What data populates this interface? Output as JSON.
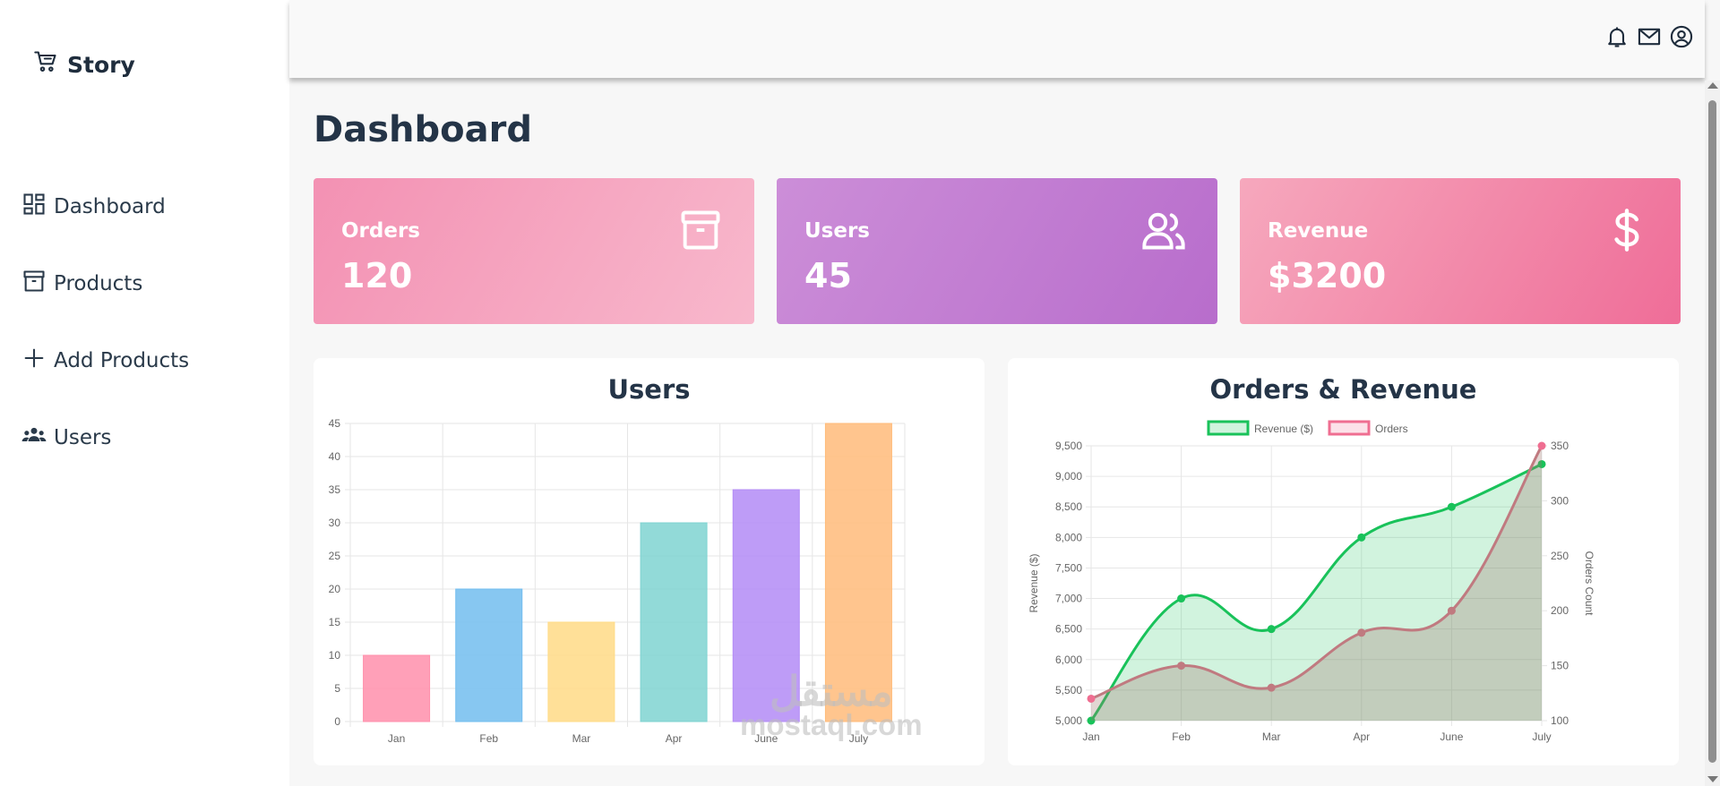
{
  "app": {
    "brand": "Story"
  },
  "sidebar": {
    "items": [
      {
        "label": "Dashboard",
        "icon": "dashboard-icon"
      },
      {
        "label": "Products",
        "icon": "archive-icon"
      },
      {
        "label": "Add Products",
        "icon": "plus-icon"
      },
      {
        "label": "Users",
        "icon": "group-icon"
      }
    ]
  },
  "header": {
    "icons": [
      "bell-icon",
      "mail-icon",
      "user-circle-icon"
    ]
  },
  "page": {
    "title": "Dashboard"
  },
  "cards": [
    {
      "label": "Orders",
      "value": "120",
      "icon": "archive-icon"
    },
    {
      "label": "Users",
      "value": "45",
      "icon": "users-icon"
    },
    {
      "label": "Revenue",
      "value": "$3200",
      "icon": "dollar-icon"
    }
  ],
  "watermark": {
    "arabic": "مستقل",
    "latin": "mostaql.com"
  },
  "colors": {
    "bar_colors": [
      "#ff8fab",
      "#72bdef",
      "#ffdb86",
      "#7fd3d1",
      "#b38bf6",
      "#ffbb7a"
    ],
    "revenue": "#19c25a",
    "orders": "#ef6e91"
  },
  "chart_data": [
    {
      "type": "bar",
      "title": "Users",
      "categories": [
        "Jan",
        "Feb",
        "Mar",
        "Apr",
        "June",
        "July"
      ],
      "values": [
        10,
        20,
        15,
        30,
        35,
        45
      ],
      "ylim": [
        0,
        45
      ],
      "yticks": [
        "0",
        "5",
        "10",
        "15",
        "20",
        "25",
        "30",
        "35",
        "40",
        "45"
      ],
      "grid": true
    },
    {
      "type": "line",
      "title": "Orders & Revenue",
      "categories": [
        "Jan",
        "Feb",
        "Mar",
        "Apr",
        "June",
        "July"
      ],
      "series": [
        {
          "name": "Revenue ($)",
          "axis": "left",
          "values": [
            5000,
            7000,
            6500,
            8000,
            8500,
            9200
          ],
          "fill": true
        },
        {
          "name": "Orders",
          "axis": "right",
          "values": [
            120,
            150,
            130,
            180,
            200,
            350
          ],
          "fill": true
        }
      ],
      "ylabel": "Revenue ($)",
      "y2label": "Orders Count",
      "ylim": [
        5000,
        9500
      ],
      "y2lim": [
        100,
        350
      ],
      "yticks": [
        "5,000",
        "5,500",
        "6,000",
        "6,500",
        "7,000",
        "7,500",
        "8,000",
        "8,500",
        "9,000",
        "9,500"
      ],
      "y2ticks": [
        "100",
        "150",
        "200",
        "250",
        "300",
        "350"
      ],
      "legend": "top",
      "grid": true
    }
  ]
}
